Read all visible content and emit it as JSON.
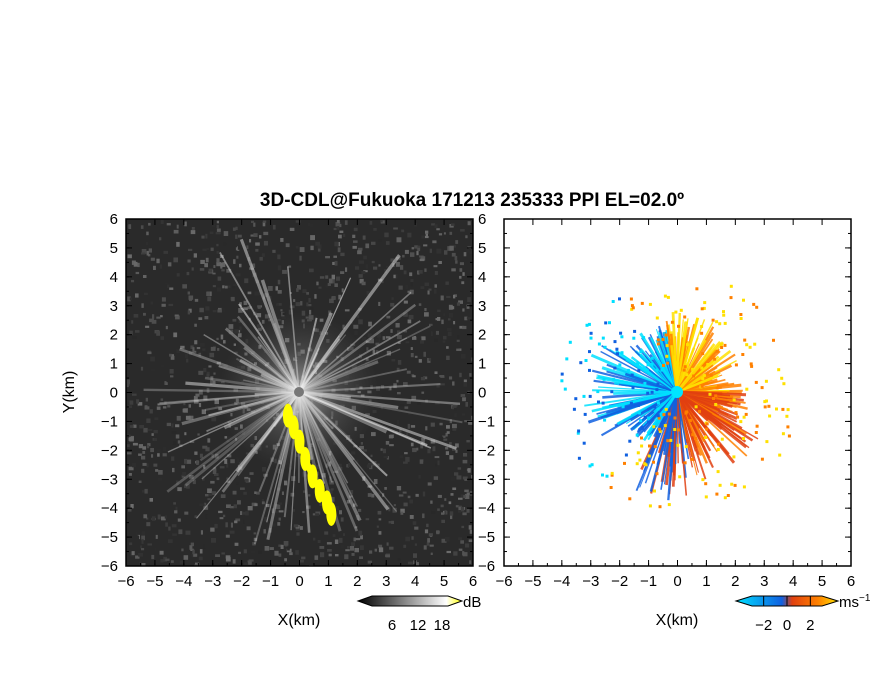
{
  "chart_data": {
    "title": "3D-CDL@Fukuoka 171213 235333 PPI EL=02.0º",
    "panels": [
      {
        "type": "heatmap",
        "quantity": "backscatter intensity",
        "xlabel": "X(km)",
        "ylabel": "Y(km)",
        "xlim": [
          -6,
          6
        ],
        "ylim": [
          -6,
          6
        ],
        "x_ticks": [
          "-6",
          "-5",
          "-4",
          "-3",
          "-2",
          "-1",
          "0",
          "1",
          "2",
          "3",
          "4",
          "5",
          "6"
        ],
        "y_ticks": [
          "-6",
          "-5",
          "-4",
          "-3",
          "-2",
          "-1",
          "0",
          "1",
          "2",
          "3",
          "4",
          "5",
          "6"
        ],
        "colorbar": {
          "unit": "dB",
          "tick_labels": [
            "6",
            "12",
            "18"
          ],
          "colors": [
            "#000000",
            "#ffffff",
            "#ffff00"
          ]
        },
        "highlight_path": {
          "color": "#ffff00",
          "points": [
            [
              -0.4,
              -0.8
            ],
            [
              -0.2,
              -1.2
            ],
            [
              0.0,
              -1.7
            ],
            [
              0.2,
              -2.3
            ],
            [
              0.45,
              -2.9
            ],
            [
              0.7,
              -3.4
            ],
            [
              0.95,
              -3.8
            ],
            [
              1.1,
              -4.2
            ]
          ]
        }
      },
      {
        "type": "heatmap",
        "quantity": "radial velocity",
        "xlabel": "X(km)",
        "xlim": [
          -6,
          6
        ],
        "ylim": [
          -6,
          6
        ],
        "x_ticks": [
          "-6",
          "-5",
          "-4",
          "-3",
          "-2",
          "-1",
          "0",
          "1",
          "2",
          "3",
          "4",
          "5",
          "6"
        ],
        "colorbar": {
          "unit": "ms",
          "unit_superscript": "−1",
          "tick_labels": [
            "−2",
            "0",
            "2"
          ],
          "range": [
            -3,
            3
          ],
          "colors": [
            "#00e0ff",
            "#1060e0",
            "#e04010",
            "#ff8000",
            "#ffe000"
          ]
        }
      }
    ]
  }
}
